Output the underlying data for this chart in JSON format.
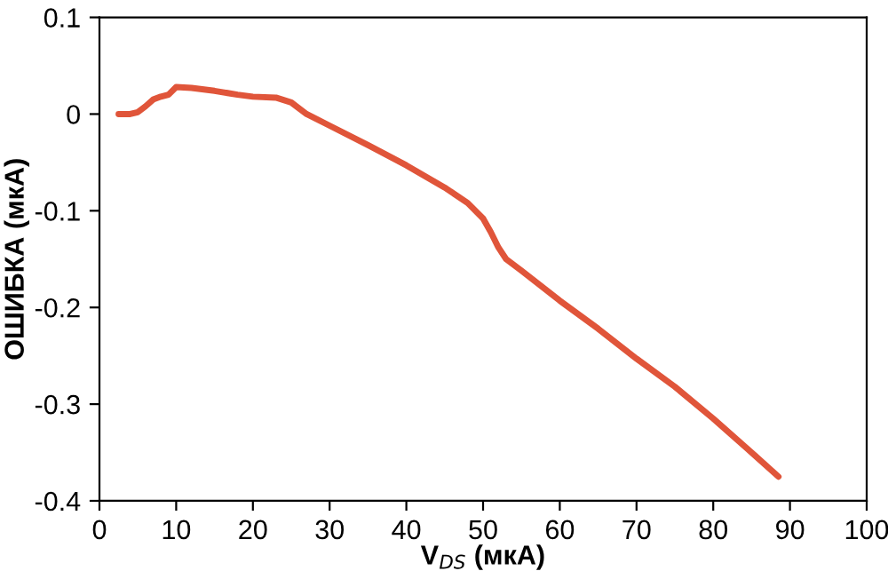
{
  "chart_data": {
    "type": "line",
    "xlabel": "V$_{DS}$ (мкА)",
    "ylabel": "ОШИБКА (мкА)",
    "xlim": [
      0,
      100
    ],
    "xticks": [
      0,
      10,
      20,
      30,
      40,
      50,
      60,
      70,
      80,
      90,
      100
    ],
    "ylim": [
      -0.4,
      0.1
    ],
    "yticks": [
      {
        "value": -0.4,
        "label": "-0.4"
      },
      {
        "value": -0.3,
        "label": "-0.3"
      },
      {
        "value": -0.2,
        "label": "-0.2"
      },
      {
        "value": -0.1,
        "label": "-0.1"
      },
      0,
      0.1
    ],
    "grid": false,
    "legend": false,
    "marker": "none",
    "line_style": "solid",
    "series": [
      {
        "color": "#e0553a",
        "x": [
          2.5,
          4,
          5,
          6,
          7,
          8,
          9,
          10,
          12,
          15,
          18,
          20,
          23,
          25,
          27,
          30,
          35,
          40,
          45,
          48,
          50,
          51,
          52,
          53,
          55,
          60,
          65,
          70,
          75,
          80,
          85,
          88.5
        ],
        "values": [
          0.0,
          0.0,
          0.002,
          0.008,
          0.015,
          0.018,
          0.02,
          0.028,
          0.027,
          0.024,
          0.02,
          0.018,
          0.017,
          0.012,
          0.0,
          -0.012,
          -0.032,
          -0.053,
          -0.076,
          -0.092,
          -0.108,
          -0.122,
          -0.138,
          -0.15,
          -0.162,
          -0.193,
          -0.222,
          -0.253,
          -0.282,
          -0.315,
          -0.35,
          -0.375
        ]
      }
    ]
  }
}
